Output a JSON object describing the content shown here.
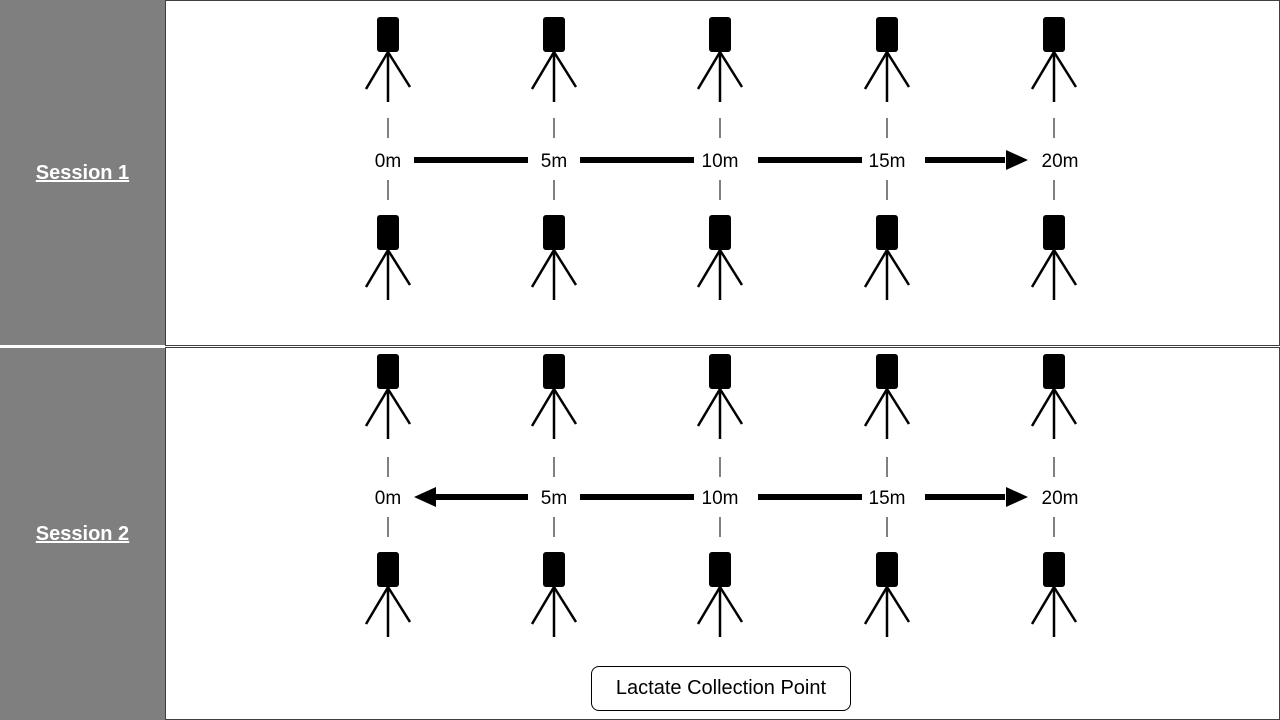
{
  "sessions": [
    {
      "label": "Session 1",
      "markers": [
        "0m",
        "5m",
        "10m",
        "15m",
        "20m"
      ],
      "arrow_directions": [
        "right"
      ]
    },
    {
      "label": "Session 2",
      "markers": [
        "0m",
        "5m",
        "10m",
        "15m",
        "20m"
      ],
      "arrow_directions": [
        "left",
        "right"
      ]
    }
  ],
  "legend": {
    "label": "Lactate Collection Point"
  },
  "colors": {
    "sidebar": "#7f7f7f",
    "sidebar_text": "#ffffff",
    "ink": "#000000",
    "border": "#3f3f3f"
  },
  "icons": [
    "camera-tripod-icon"
  ]
}
